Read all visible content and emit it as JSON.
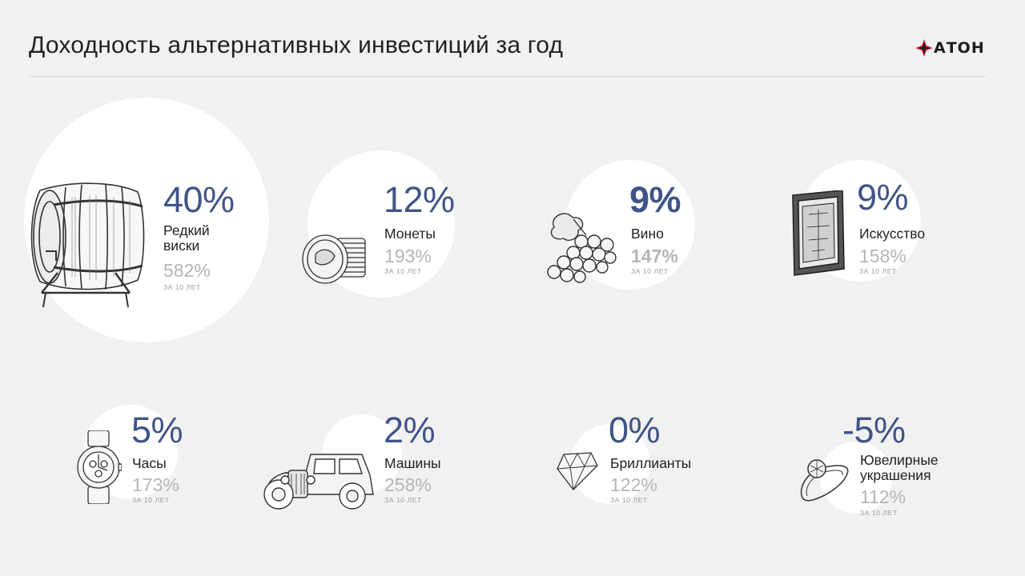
{
  "header": {
    "title": "Доходность альтернативных инвестиций за год",
    "logo_text": "АТОН"
  },
  "colors": {
    "accent": "#3f5488",
    "logo_red": "#d6243a",
    "muted": "#b5b5b5",
    "background": "#f1f1f1"
  },
  "items": [
    {
      "name": "whisky",
      "percent": "40%",
      "label": "Редкий виски",
      "label_line1": "Редкий",
      "label_line2": "виски",
      "ten_year": "582%",
      "note": "ЗА 10 ЛЕТ",
      "icon": "barrel-icon"
    },
    {
      "name": "coins",
      "percent": "12%",
      "label": "Монеты",
      "ten_year": "193%",
      "note": "ЗА 10 ЛЕТ",
      "icon": "coins-icon"
    },
    {
      "name": "wine",
      "percent": "9%",
      "label": "Вино",
      "ten_year": "147%",
      "note": "ЗА 10 ЛЕТ",
      "icon": "grapes-icon"
    },
    {
      "name": "art",
      "percent": "9%",
      "label": "Искусство",
      "ten_year": "158%",
      "note": "ЗА 10 ЛЕТ",
      "icon": "painting-icon"
    },
    {
      "name": "watches",
      "percent": "5%",
      "label": "Часы",
      "ten_year": "173%",
      "note": "ЗА 10 ЛЕТ",
      "icon": "watch-icon"
    },
    {
      "name": "cars",
      "percent": "2%",
      "label": "Машины",
      "ten_year": "258%",
      "note": "ЗА 10 ЛЕТ",
      "icon": "car-icon"
    },
    {
      "name": "diamonds",
      "percent": "0%",
      "label": "Бриллианты",
      "ten_year": "122%",
      "note": "ЗА 10 ЛЕТ",
      "icon": "diamond-icon"
    },
    {
      "name": "jewelry",
      "percent": "-5%",
      "label": "Ювелирные украшения",
      "label_line1": "Ювелирные",
      "label_line2": "украшения",
      "ten_year": "112%",
      "note": "ЗА 10 ЛЕТ",
      "icon": "ring-icon"
    }
  ]
}
